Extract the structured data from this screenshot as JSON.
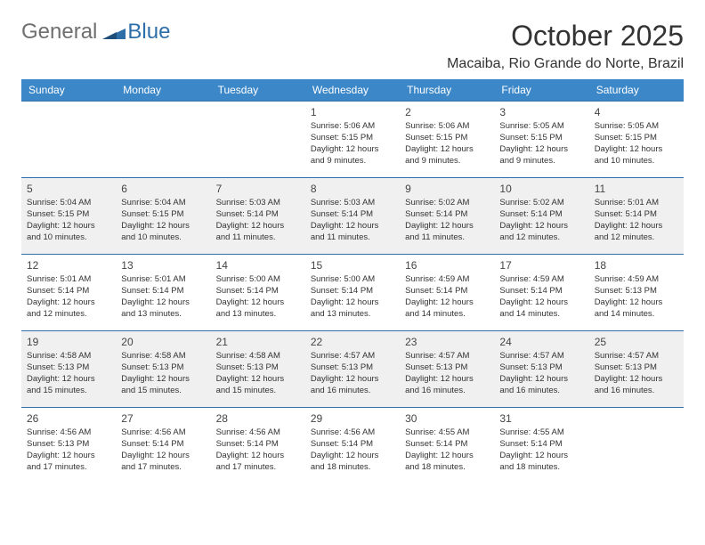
{
  "logo": {
    "word1": "General",
    "word2": "Blue"
  },
  "header": {
    "month": "October 2025",
    "location": "Macaiba, Rio Grande do Norte, Brazil"
  },
  "calendar": {
    "weekdays": [
      "Sunday",
      "Monday",
      "Tuesday",
      "Wednesday",
      "Thursday",
      "Friday",
      "Saturday"
    ],
    "colors": {
      "header_bg": "#3b87c8",
      "divider": "#2f6fa8",
      "stripe": "#f0f0f0",
      "background": "#ffffff"
    },
    "weeks": [
      [
        null,
        null,
        null,
        {
          "n": "1",
          "sunrise": "Sunrise: 5:06 AM",
          "sunset": "Sunset: 5:15 PM",
          "day": "Daylight: 12 hours and 9 minutes."
        },
        {
          "n": "2",
          "sunrise": "Sunrise: 5:06 AM",
          "sunset": "Sunset: 5:15 PM",
          "day": "Daylight: 12 hours and 9 minutes."
        },
        {
          "n": "3",
          "sunrise": "Sunrise: 5:05 AM",
          "sunset": "Sunset: 5:15 PM",
          "day": "Daylight: 12 hours and 9 minutes."
        },
        {
          "n": "4",
          "sunrise": "Sunrise: 5:05 AM",
          "sunset": "Sunset: 5:15 PM",
          "day": "Daylight: 12 hours and 10 minutes."
        }
      ],
      [
        {
          "n": "5",
          "sunrise": "Sunrise: 5:04 AM",
          "sunset": "Sunset: 5:15 PM",
          "day": "Daylight: 12 hours and 10 minutes."
        },
        {
          "n": "6",
          "sunrise": "Sunrise: 5:04 AM",
          "sunset": "Sunset: 5:15 PM",
          "day": "Daylight: 12 hours and 10 minutes."
        },
        {
          "n": "7",
          "sunrise": "Sunrise: 5:03 AM",
          "sunset": "Sunset: 5:14 PM",
          "day": "Daylight: 12 hours and 11 minutes."
        },
        {
          "n": "8",
          "sunrise": "Sunrise: 5:03 AM",
          "sunset": "Sunset: 5:14 PM",
          "day": "Daylight: 12 hours and 11 minutes."
        },
        {
          "n": "9",
          "sunrise": "Sunrise: 5:02 AM",
          "sunset": "Sunset: 5:14 PM",
          "day": "Daylight: 12 hours and 11 minutes."
        },
        {
          "n": "10",
          "sunrise": "Sunrise: 5:02 AM",
          "sunset": "Sunset: 5:14 PM",
          "day": "Daylight: 12 hours and 12 minutes."
        },
        {
          "n": "11",
          "sunrise": "Sunrise: 5:01 AM",
          "sunset": "Sunset: 5:14 PM",
          "day": "Daylight: 12 hours and 12 minutes."
        }
      ],
      [
        {
          "n": "12",
          "sunrise": "Sunrise: 5:01 AM",
          "sunset": "Sunset: 5:14 PM",
          "day": "Daylight: 12 hours and 12 minutes."
        },
        {
          "n": "13",
          "sunrise": "Sunrise: 5:01 AM",
          "sunset": "Sunset: 5:14 PM",
          "day": "Daylight: 12 hours and 13 minutes."
        },
        {
          "n": "14",
          "sunrise": "Sunrise: 5:00 AM",
          "sunset": "Sunset: 5:14 PM",
          "day": "Daylight: 12 hours and 13 minutes."
        },
        {
          "n": "15",
          "sunrise": "Sunrise: 5:00 AM",
          "sunset": "Sunset: 5:14 PM",
          "day": "Daylight: 12 hours and 13 minutes."
        },
        {
          "n": "16",
          "sunrise": "Sunrise: 4:59 AM",
          "sunset": "Sunset: 5:14 PM",
          "day": "Daylight: 12 hours and 14 minutes."
        },
        {
          "n": "17",
          "sunrise": "Sunrise: 4:59 AM",
          "sunset": "Sunset: 5:14 PM",
          "day": "Daylight: 12 hours and 14 minutes."
        },
        {
          "n": "18",
          "sunrise": "Sunrise: 4:59 AM",
          "sunset": "Sunset: 5:13 PM",
          "day": "Daylight: 12 hours and 14 minutes."
        }
      ],
      [
        {
          "n": "19",
          "sunrise": "Sunrise: 4:58 AM",
          "sunset": "Sunset: 5:13 PM",
          "day": "Daylight: 12 hours and 15 minutes."
        },
        {
          "n": "20",
          "sunrise": "Sunrise: 4:58 AM",
          "sunset": "Sunset: 5:13 PM",
          "day": "Daylight: 12 hours and 15 minutes."
        },
        {
          "n": "21",
          "sunrise": "Sunrise: 4:58 AM",
          "sunset": "Sunset: 5:13 PM",
          "day": "Daylight: 12 hours and 15 minutes."
        },
        {
          "n": "22",
          "sunrise": "Sunrise: 4:57 AM",
          "sunset": "Sunset: 5:13 PM",
          "day": "Daylight: 12 hours and 16 minutes."
        },
        {
          "n": "23",
          "sunrise": "Sunrise: 4:57 AM",
          "sunset": "Sunset: 5:13 PM",
          "day": "Daylight: 12 hours and 16 minutes."
        },
        {
          "n": "24",
          "sunrise": "Sunrise: 4:57 AM",
          "sunset": "Sunset: 5:13 PM",
          "day": "Daylight: 12 hours and 16 minutes."
        },
        {
          "n": "25",
          "sunrise": "Sunrise: 4:57 AM",
          "sunset": "Sunset: 5:13 PM",
          "day": "Daylight: 12 hours and 16 minutes."
        }
      ],
      [
        {
          "n": "26",
          "sunrise": "Sunrise: 4:56 AM",
          "sunset": "Sunset: 5:13 PM",
          "day": "Daylight: 12 hours and 17 minutes."
        },
        {
          "n": "27",
          "sunrise": "Sunrise: 4:56 AM",
          "sunset": "Sunset: 5:14 PM",
          "day": "Daylight: 12 hours and 17 minutes."
        },
        {
          "n": "28",
          "sunrise": "Sunrise: 4:56 AM",
          "sunset": "Sunset: 5:14 PM",
          "day": "Daylight: 12 hours and 17 minutes."
        },
        {
          "n": "29",
          "sunrise": "Sunrise: 4:56 AM",
          "sunset": "Sunset: 5:14 PM",
          "day": "Daylight: 12 hours and 18 minutes."
        },
        {
          "n": "30",
          "sunrise": "Sunrise: 4:55 AM",
          "sunset": "Sunset: 5:14 PM",
          "day": "Daylight: 12 hours and 18 minutes."
        },
        {
          "n": "31",
          "sunrise": "Sunrise: 4:55 AM",
          "sunset": "Sunset: 5:14 PM",
          "day": "Daylight: 12 hours and 18 minutes."
        },
        null
      ]
    ]
  }
}
